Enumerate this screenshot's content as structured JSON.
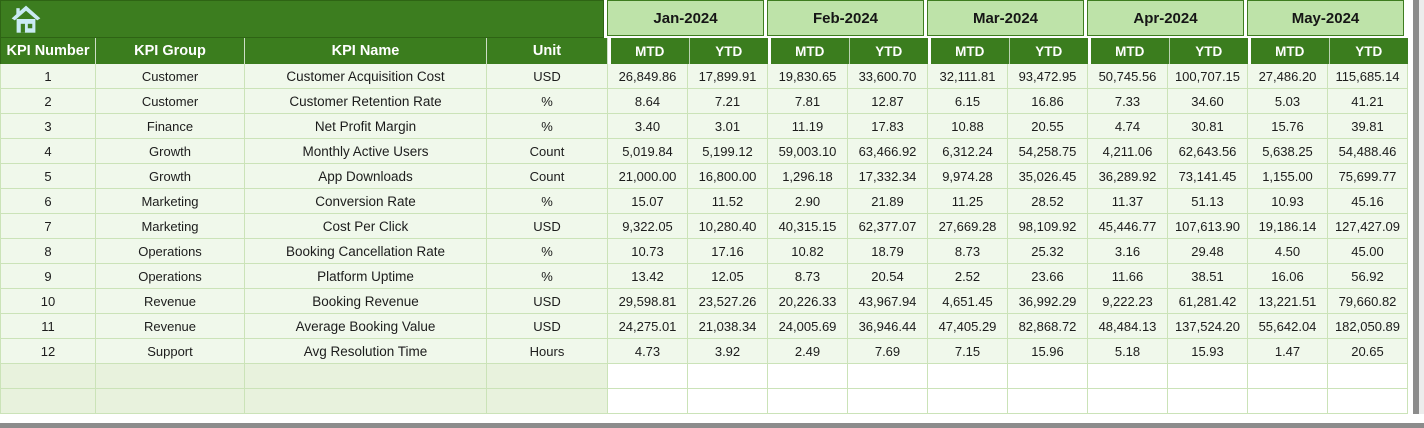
{
  "app": {
    "home_icon": "home-icon"
  },
  "table": {
    "left_headers": [
      "KPI Number",
      "KPI Group",
      "KPI Name",
      "Unit"
    ],
    "months": [
      "Jan-2024",
      "Feb-2024",
      "Mar-2024",
      "Apr-2024",
      "May-2024"
    ],
    "sub_headers": [
      "MTD",
      "YTD"
    ],
    "rows": [
      {
        "number": "1",
        "group": "Customer",
        "name": "Customer Acquisition Cost",
        "unit": "USD",
        "values": [
          "26,849.86",
          "17,899.91",
          "19,830.65",
          "33,600.70",
          "32,111.81",
          "93,472.95",
          "50,745.56",
          "100,707.15",
          "27,486.20",
          "115,685.14"
        ]
      },
      {
        "number": "2",
        "group": "Customer",
        "name": "Customer Retention Rate",
        "unit": "%",
        "values": [
          "8.64",
          "7.21",
          "7.81",
          "12.87",
          "6.15",
          "16.86",
          "7.33",
          "34.60",
          "5.03",
          "41.21"
        ]
      },
      {
        "number": "3",
        "group": "Finance",
        "name": "Net Profit Margin",
        "unit": "%",
        "values": [
          "3.40",
          "3.01",
          "11.19",
          "17.83",
          "10.88",
          "20.55",
          "4.74",
          "30.81",
          "15.76",
          "39.81"
        ]
      },
      {
        "number": "4",
        "group": "Growth",
        "name": "Monthly Active Users",
        "unit": "Count",
        "values": [
          "5,019.84",
          "5,199.12",
          "59,003.10",
          "63,466.92",
          "6,312.24",
          "54,258.75",
          "4,211.06",
          "62,643.56",
          "5,638.25",
          "54,488.46"
        ]
      },
      {
        "number": "5",
        "group": "Growth",
        "name": "App Downloads",
        "unit": "Count",
        "values": [
          "21,000.00",
          "16,800.00",
          "1,296.18",
          "17,332.34",
          "9,974.28",
          "35,026.45",
          "36,289.92",
          "73,141.45",
          "1,155.00",
          "75,699.77"
        ]
      },
      {
        "number": "6",
        "group": "Marketing",
        "name": "Conversion Rate",
        "unit": "%",
        "values": [
          "15.07",
          "11.52",
          "2.90",
          "21.89",
          "11.25",
          "28.52",
          "11.37",
          "51.13",
          "10.93",
          "45.16"
        ]
      },
      {
        "number": "7",
        "group": "Marketing",
        "name": "Cost Per Click",
        "unit": "USD",
        "values": [
          "9,322.05",
          "10,280.40",
          "40,315.15",
          "62,377.07",
          "27,669.28",
          "98,109.92",
          "45,446.77",
          "107,613.90",
          "19,186.14",
          "127,427.09"
        ]
      },
      {
        "number": "8",
        "group": "Operations",
        "name": "Booking Cancellation Rate",
        "unit": "%",
        "values": [
          "10.73",
          "17.16",
          "10.82",
          "18.79",
          "8.73",
          "25.32",
          "3.16",
          "29.48",
          "4.50",
          "45.00"
        ]
      },
      {
        "number": "9",
        "group": "Operations",
        "name": "Platform Uptime",
        "unit": "%",
        "values": [
          "13.42",
          "12.05",
          "8.73",
          "20.54",
          "2.52",
          "23.66",
          "11.66",
          "38.51",
          "16.06",
          "56.92"
        ]
      },
      {
        "number": "10",
        "group": "Revenue",
        "name": "Booking Revenue",
        "unit": "USD",
        "values": [
          "29,598.81",
          "23,527.26",
          "20,226.33",
          "43,967.94",
          "4,651.45",
          "36,992.29",
          "9,222.23",
          "61,281.42",
          "13,221.51",
          "79,660.82"
        ]
      },
      {
        "number": "11",
        "group": "Revenue",
        "name": "Average Booking Value",
        "unit": "USD",
        "values": [
          "24,275.01",
          "21,038.34",
          "24,005.69",
          "36,946.44",
          "47,405.29",
          "82,868.72",
          "48,484.13",
          "137,524.20",
          "55,642.04",
          "182,050.89"
        ]
      },
      {
        "number": "12",
        "group": "Support",
        "name": "Avg Resolution Time",
        "unit": "Hours",
        "values": [
          "4.73",
          "3.92",
          "2.49",
          "7.69",
          "7.15",
          "15.96",
          "5.18",
          "15.93",
          "1.47",
          "20.65"
        ]
      }
    ],
    "empty_row_count": 2
  },
  "colors": {
    "header_dark_green": "#3B7D1E",
    "month_light_green": "#BEE3A9",
    "row_background": "#F0F8EB",
    "gridline": "#CBE3B8",
    "empty_row_left": "#E8F2DD",
    "home_icon_blue": "#C9EAF3",
    "scrollbar_gray": "#8C8C8C"
  }
}
